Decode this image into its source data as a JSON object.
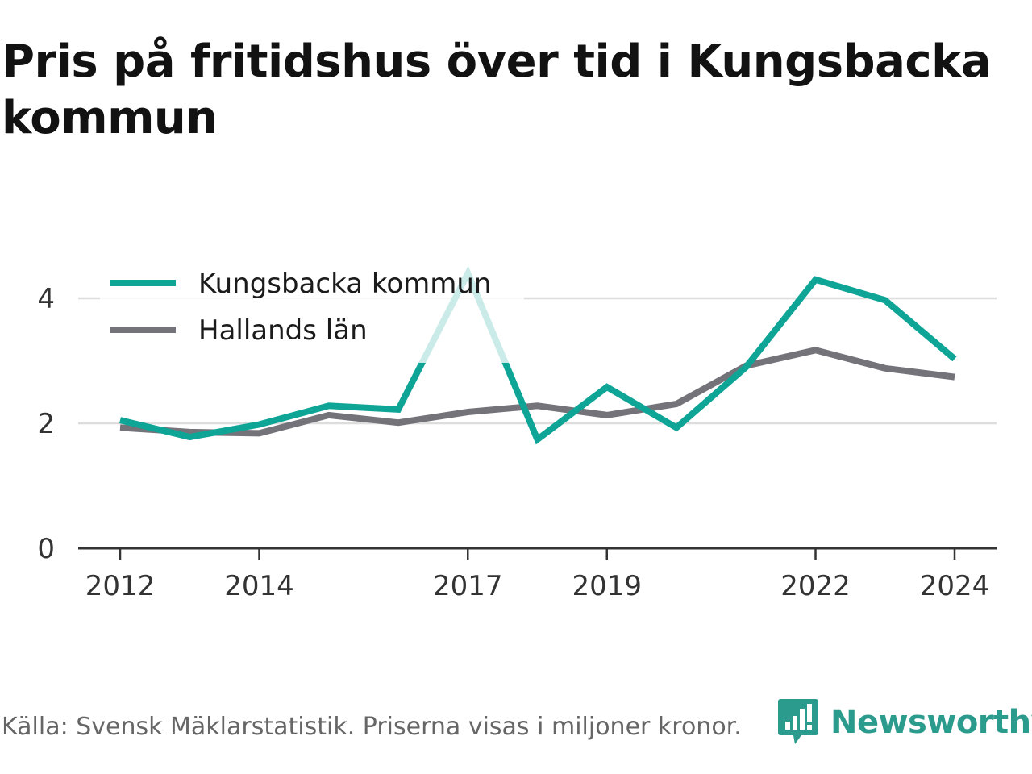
{
  "title": "Pris på fritidshus över tid i Kungsbacka kommun",
  "source_note": "Källa: Svensk Mäklarstatistik. Priserna visas i miljoner kronor.",
  "brand": {
    "name": "Newsworthy",
    "icon": "newsworthy-logo-icon",
    "color": "#2a9b8c"
  },
  "chart_data": {
    "type": "line",
    "title": "Pris på fritidshus över tid i Kungsbacka kommun",
    "xlabel": "",
    "ylabel": "",
    "x": [
      2012,
      2013,
      2014,
      2015,
      2016,
      2017,
      2018,
      2019,
      2020,
      2021,
      2022,
      2023,
      2024
    ],
    "x_ticks": [
      "2012",
      "2014",
      "2017",
      "2019",
      "2022",
      "2024"
    ],
    "y_ticks": [
      "0",
      "2",
      "4"
    ],
    "ylim": [
      0,
      4.4
    ],
    "grid": true,
    "legend_position": "top-left",
    "series": [
      {
        "name": "Kungsbacka kommun",
        "color": "#0ea597",
        "values": [
          2.05,
          1.78,
          1.98,
          2.28,
          2.22,
          4.4,
          1.74,
          2.58,
          1.93,
          2.9,
          4.3,
          3.97,
          3.03
        ]
      },
      {
        "name": "Hallands län",
        "color": "#74737a",
        "values": [
          1.93,
          1.86,
          1.84,
          2.13,
          2.01,
          2.18,
          2.28,
          2.13,
          2.31,
          2.92,
          3.17,
          2.88,
          2.74
        ]
      }
    ]
  }
}
